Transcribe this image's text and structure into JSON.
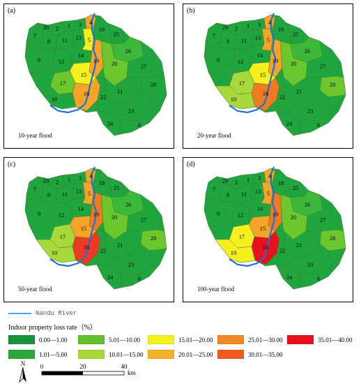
{
  "panels": [
    {
      "label": "(a)",
      "title": "10-year flood",
      "fills": {
        "1": "g1",
        "2": "g1",
        "3": "g1",
        "4": "or",
        "5": "y",
        "6": "g1",
        "7": "g1",
        "8": "g1",
        "9": "g1",
        "10": "g1",
        "11": "g1",
        "12": "g1",
        "13": "g1",
        "14": "g1",
        "15": "y",
        "16": "or",
        "17": "g3",
        "18": "g1",
        "19": "or",
        "20": "g3",
        "21": "g1",
        "22": "g1",
        "23": "g1",
        "24": "g1",
        "25": "g1",
        "26": "g2",
        "27": "g1",
        "28": "g1",
        "29": "g1"
      }
    },
    {
      "label": "(b)",
      "title": "20-year flood",
      "fills": {
        "1": "g1",
        "2": "g1",
        "3": "g1",
        "4": "or",
        "5": "or",
        "6": "g1",
        "7": "g1",
        "8": "g1",
        "9": "g1",
        "10": "g4",
        "11": "g1",
        "12": "g1",
        "13": "g1",
        "14": "g1",
        "15": "y",
        "16": "or2",
        "17": "g4",
        "18": "g1",
        "19": "or",
        "20": "g3",
        "21": "g1",
        "22": "g1",
        "23": "g1",
        "24": "g1",
        "25": "g1",
        "26": "g2",
        "27": "g1",
        "28": "g3",
        "29": "g1"
      }
    },
    {
      "label": "(c)",
      "title": "50-year flood",
      "fills": {
        "1": "g1",
        "2": "g1",
        "3": "g1",
        "4": "or",
        "5": "or",
        "6": "g1",
        "7": "g1",
        "8": "g1",
        "9": "g1",
        "10": "g4",
        "11": "g1",
        "12": "g1",
        "13": "g1",
        "14": "g1",
        "15": "or",
        "16": "r",
        "17": "g4",
        "18": "g1",
        "19": "or2",
        "20": "g3",
        "21": "g1",
        "22": "g1",
        "23": "g1",
        "24": "g1",
        "25": "g1",
        "26": "g2",
        "27": "g1",
        "28": "g3",
        "29": "g1"
      }
    },
    {
      "label": "(d)",
      "title": "100-year flood",
      "fills": {
        "1": "g1",
        "2": "g1",
        "3": "g1",
        "4": "or",
        "5": "or",
        "6": "g1",
        "7": "g1",
        "8": "g1",
        "9": "g1",
        "10": "y",
        "11": "g1",
        "12": "g1",
        "13": "g1",
        "14": "g1",
        "15": "or",
        "16": "rr",
        "17": "y",
        "18": "g1",
        "19": "or2",
        "20": "g3",
        "21": "g1",
        "22": "g1",
        "23": "g1",
        "24": "g1",
        "25": "g1",
        "26": "g2",
        "27": "g1",
        "28": "g3",
        "29": "g1"
      }
    }
  ],
  "colors": {
    "g1": "#1fa63f",
    "g2": "#3cb83a",
    "g3": "#6cc62e",
    "g4": "#a8d93a",
    "y": "#f5f01e",
    "or": "#f6a32a",
    "or2": "#f07a1f",
    "r": "#ee3a23",
    "rr": "#e8101c"
  },
  "legend": {
    "river_label": "Nandu River",
    "title": "Indoor property loss rate（%）",
    "items": [
      {
        "label": "0.00—1.00",
        "color": "#16923a"
      },
      {
        "label": "1.01—5.00",
        "color": "#2ba837"
      },
      {
        "label": "5.01—10.00",
        "color": "#63c12f"
      },
      {
        "label": "10.01—15.00",
        "color": "#a8d93a"
      },
      {
        "label": "15.01—20.00",
        "color": "#f5f01e"
      },
      {
        "label": "20.01—25.00",
        "color": "#f6b12a"
      },
      {
        "label": "25.01—30.00",
        "color": "#f28a25"
      },
      {
        "label": "30.01—35.00",
        "color": "#f05a22"
      },
      {
        "label": "35.01—40.00",
        "color": "#e8101c"
      }
    ]
  },
  "north_label": "N",
  "scale": {
    "ticks": [
      "0",
      "20",
      "40"
    ],
    "unit": "km"
  }
}
